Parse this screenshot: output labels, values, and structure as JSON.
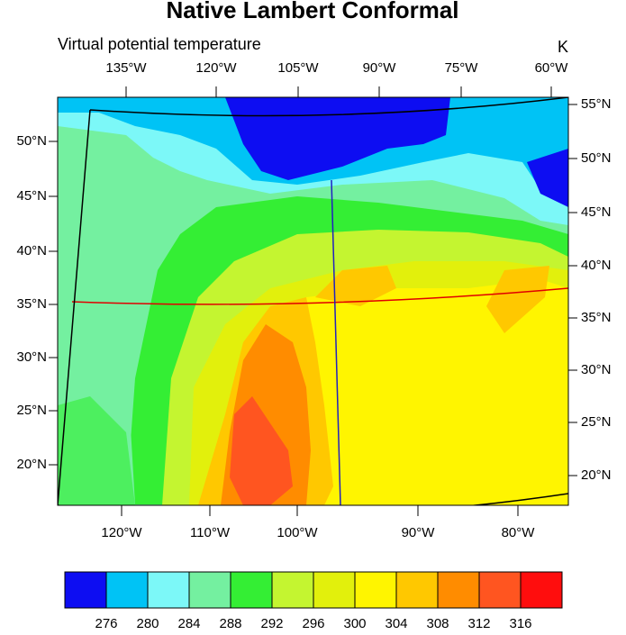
{
  "map": {
    "title": "Native Lambert Conformal",
    "subtitle": "Virtual potential temperature",
    "unit": "K",
    "top_labels": [
      "135°W",
      "120°W",
      "105°W",
      "90°W",
      "75°W",
      "60°W"
    ],
    "left_labels": [
      "50°N",
      "45°N",
      "40°N",
      "35°N",
      "30°N",
      "25°N",
      "20°N"
    ],
    "right_labels": [
      "55°N",
      "50°N",
      "45°N",
      "40°N",
      "35°N",
      "30°N",
      "25°N",
      "20°N"
    ],
    "bottom_labels": [
      "120°W",
      "110°W",
      "100°W",
      "90°W",
      "80°W"
    ],
    "colorbar": {
      "levels": [
        276,
        280,
        284,
        288,
        292,
        296,
        300,
        304,
        308,
        312,
        316
      ],
      "colors": [
        "#0d0df2",
        "#00c3f5",
        "#7cf8f8",
        "#74f0a0",
        "#34ee34",
        "#c4f530",
        "#e2f00c",
        "#fff500",
        "#ffc800",
        "#ff8c00",
        "#ff5520",
        "#ff0d0d"
      ]
    }
  }
}
